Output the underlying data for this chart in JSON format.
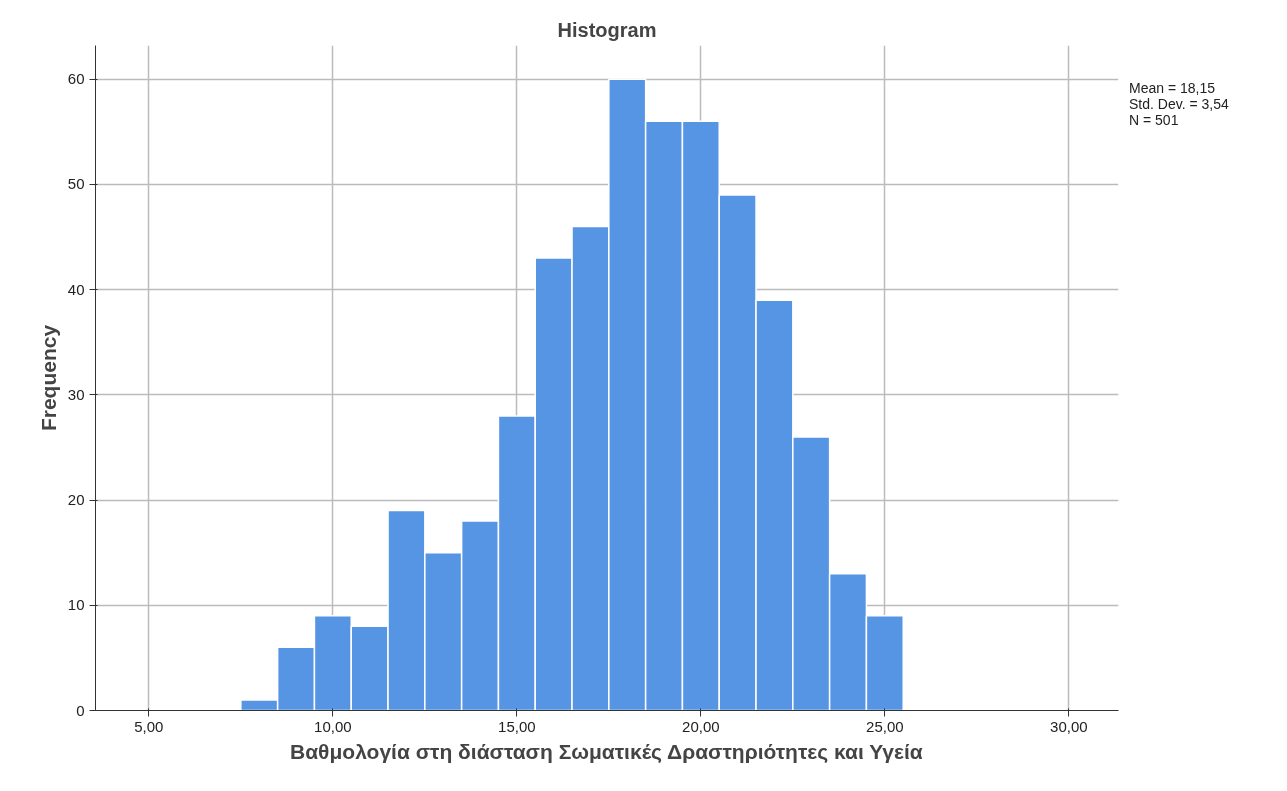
{
  "chart_data": {
    "type": "histogram",
    "title": "Histogram",
    "xlabel": "Βαθμολογία στη διάσταση Σωματικές Δραστηριότητες και Υγεία",
    "ylabel": "Frequency",
    "bins": [
      7.5,
      8.5,
      9.5,
      10.5,
      11.5,
      12.5,
      13.5,
      14.5,
      15.5,
      16.5,
      17.5,
      18.5,
      19.5,
      20.5,
      21.5,
      22.5,
      23.5,
      24.5,
      25.5
    ],
    "values": [
      1,
      6,
      9,
      8,
      19,
      15,
      18,
      28,
      43,
      46,
      60,
      56,
      56,
      49,
      39,
      26,
      13,
      9
    ],
    "color": "#5694e4",
    "xlim": [
      3.55,
      31.35
    ],
    "ylim": [
      0,
      63.2
    ],
    "xticks": [
      {
        "value": 5,
        "label": "5,00"
      },
      {
        "value": 10,
        "label": "10,00"
      },
      {
        "value": 15,
        "label": "15,00"
      },
      {
        "value": 20,
        "label": "20,00"
      },
      {
        "value": 25,
        "label": "25,00"
      },
      {
        "value": 30,
        "label": "30,00"
      }
    ],
    "yticks": [
      0,
      10,
      20,
      30,
      40,
      50,
      60
    ],
    "grid": true,
    "annotations": [
      "Mean = 18,15",
      "Std. Dev. = 3,54",
      "N = 501"
    ]
  }
}
